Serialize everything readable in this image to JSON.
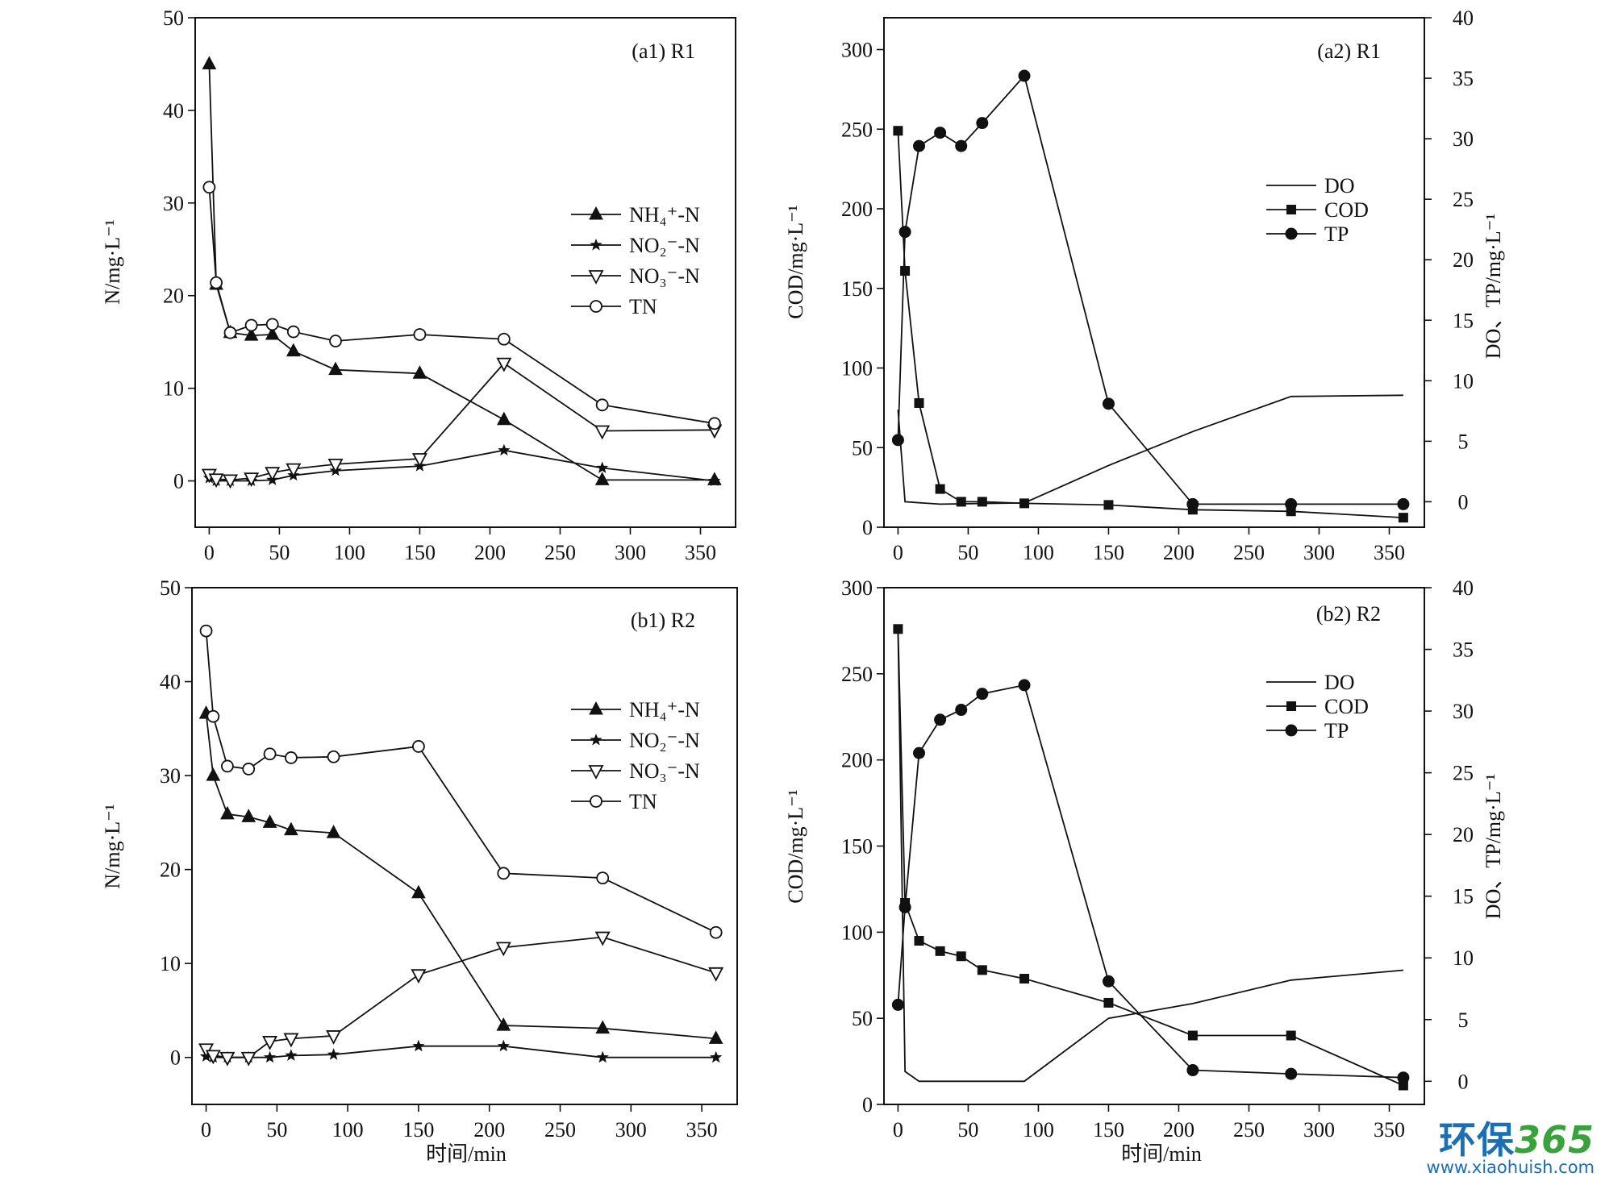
{
  "chart_data": [
    {
      "id": "a1",
      "type": "line",
      "title": "(a1) R1",
      "xlabel": "",
      "ylabel": "N/mg·L⁻¹",
      "xlim": [
        -10,
        375
      ],
      "ylim": [
        -5,
        50
      ],
      "xticks": [
        0,
        50,
        100,
        150,
        200,
        250,
        300,
        350
      ],
      "yticks": [
        0,
        10,
        20,
        30,
        40,
        50
      ],
      "legend_position": "right-middle",
      "series": [
        {
          "name": "NH₄⁺-N",
          "marker": "triangle-filled",
          "x": [
            0,
            5,
            15,
            30,
            45,
            60,
            90,
            150,
            210,
            280,
            360
          ],
          "y": [
            45.0,
            21.2,
            16.0,
            15.7,
            15.8,
            14.0,
            12.0,
            11.6,
            6.6,
            0.1,
            0.1
          ]
        },
        {
          "name": "NO₂⁻-N",
          "marker": "star",
          "x": [
            0,
            5,
            15,
            30,
            45,
            60,
            90,
            150,
            210,
            280,
            360
          ],
          "y": [
            0.3,
            0.0,
            0.0,
            0.0,
            0.1,
            0.6,
            1.1,
            1.6,
            3.3,
            1.4,
            0.0
          ]
        },
        {
          "name": "NO₃⁻-N",
          "marker": "triangle-down-open",
          "x": [
            0,
            5,
            15,
            30,
            45,
            60,
            90,
            150,
            210,
            280,
            360
          ],
          "y": [
            0.7,
            0.2,
            0.1,
            0.3,
            0.9,
            1.3,
            1.8,
            2.4,
            12.7,
            5.4,
            5.5
          ]
        },
        {
          "name": "TN",
          "marker": "circle-open",
          "x": [
            0,
            5,
            15,
            30,
            45,
            60,
            90,
            150,
            210,
            280,
            360
          ],
          "y": [
            31.7,
            21.4,
            16.0,
            16.8,
            16.9,
            16.1,
            15.1,
            15.8,
            15.3,
            8.2,
            6.2
          ]
        }
      ]
    },
    {
      "id": "a2",
      "type": "line",
      "title": "(a2) R1",
      "xlabel": "",
      "ylabel": "COD/mg·L⁻¹",
      "y2label": "DO、TP/mg·L⁻¹",
      "xlim": [
        -10,
        375
      ],
      "ylim": [
        0,
        320
      ],
      "y2lim": [
        -2.105,
        40.0
      ],
      "xticks": [
        0,
        50,
        100,
        150,
        200,
        250,
        300,
        350
      ],
      "yticks": [
        0,
        50,
        100,
        150,
        200,
        250,
        300
      ],
      "y2ticks": [
        0,
        5,
        10,
        15,
        20,
        25,
        30,
        35,
        40
      ],
      "legend_position": "right-upper",
      "series": [
        {
          "name": "DO",
          "marker": "none",
          "axis": "right",
          "x": [
            0,
            5,
            30,
            90,
            150,
            210,
            280,
            360
          ],
          "y": [
            7.6,
            0.0,
            -0.2,
            -0.1,
            3.0,
            5.8,
            8.7,
            8.8
          ]
        },
        {
          "name": "COD",
          "marker": "square-filled",
          "axis": "left",
          "x": [
            0,
            5,
            15,
            30,
            45,
            60,
            90,
            150,
            210,
            280,
            360
          ],
          "y": [
            249,
            161,
            78,
            24,
            16,
            16,
            15,
            14,
            11,
            10,
            6
          ]
        },
        {
          "name": "TP",
          "marker": "circle-filled",
          "axis": "right",
          "x": [
            0,
            5,
            15,
            30,
            45,
            60,
            90,
            150,
            210,
            280,
            360
          ],
          "y": [
            5.1,
            22.3,
            29.4,
            30.5,
            29.4,
            31.3,
            35.2,
            8.1,
            -0.2,
            -0.2,
            -0.2
          ]
        }
      ]
    },
    {
      "id": "b1",
      "type": "line",
      "title": "(b1) R2",
      "xlabel": "时间/min",
      "ylabel": "N/mg·L⁻¹",
      "xlim": [
        -10,
        375
      ],
      "ylim": [
        -5,
        50
      ],
      "xticks": [
        0,
        50,
        100,
        150,
        200,
        250,
        300,
        350
      ],
      "yticks": [
        0,
        10,
        20,
        30,
        40,
        50
      ],
      "legend_position": "right-middle",
      "series": [
        {
          "name": "NH₄⁺-N",
          "marker": "triangle-filled",
          "x": [
            0,
            5,
            15,
            30,
            45,
            60,
            90,
            150,
            210,
            280,
            360
          ],
          "y": [
            36.6,
            30.0,
            25.9,
            25.6,
            25.0,
            24.2,
            23.9,
            17.5,
            3.4,
            3.1,
            2.0
          ]
        },
        {
          "name": "NO₂⁻-N",
          "marker": "star",
          "x": [
            0,
            5,
            15,
            30,
            45,
            60,
            90,
            150,
            210,
            280,
            360
          ],
          "y": [
            0.1,
            0.0,
            0.0,
            0.0,
            0.0,
            0.2,
            0.3,
            1.2,
            1.2,
            0.0,
            0.0
          ]
        },
        {
          "name": "NO₃⁻-N",
          "marker": "triangle-down-open",
          "x": [
            0,
            5,
            15,
            30,
            45,
            60,
            90,
            150,
            210,
            280,
            360
          ],
          "y": [
            0.9,
            0.2,
            0.0,
            0.0,
            1.7,
            2.0,
            2.3,
            8.8,
            11.7,
            12.8,
            9.0
          ]
        },
        {
          "name": "TN",
          "marker": "circle-open",
          "x": [
            0,
            5,
            15,
            30,
            45,
            60,
            90,
            150,
            210,
            280,
            360
          ],
          "y": [
            45.4,
            36.3,
            31.0,
            30.7,
            32.3,
            31.9,
            32.0,
            33.1,
            19.6,
            19.1,
            13.3
          ]
        }
      ]
    },
    {
      "id": "b2",
      "type": "line",
      "title": "(b2) R2",
      "xlabel": "时间/min",
      "ylabel": "COD/mg·L⁻¹",
      "y2label": "DO、TP/mg·L⁻¹",
      "xlim": [
        -10,
        375
      ],
      "ylim": [
        0,
        300
      ],
      "y2lim": [
        -1.875,
        40.0
      ],
      "xticks": [
        0,
        50,
        100,
        150,
        200,
        250,
        300,
        350
      ],
      "yticks": [
        0,
        50,
        100,
        150,
        200,
        250,
        300
      ],
      "y2ticks": [
        0,
        5,
        10,
        15,
        20,
        25,
        30,
        35,
        40
      ],
      "legend_position": "right-upper",
      "series": [
        {
          "name": "DO",
          "marker": "none",
          "axis": "right",
          "x": [
            0,
            5,
            15,
            30,
            90,
            150,
            210,
            280,
            360
          ],
          "y": [
            36.6,
            0.8,
            0.0,
            0.0,
            0.0,
            5.1,
            6.3,
            8.2,
            9.0
          ]
        },
        {
          "name": "COD",
          "marker": "square-filled",
          "axis": "left",
          "x": [
            0,
            5,
            15,
            30,
            45,
            60,
            90,
            150,
            210,
            280,
            360
          ],
          "y": [
            276,
            117,
            95,
            89,
            86,
            78,
            73,
            59,
            40,
            40,
            11
          ]
        },
        {
          "name": "TP",
          "marker": "circle-filled",
          "axis": "right",
          "x": [
            0,
            5,
            15,
            30,
            45,
            60,
            90,
            150,
            210,
            280,
            360
          ],
          "y": [
            6.2,
            14.1,
            26.6,
            29.3,
            30.1,
            31.4,
            32.1,
            8.1,
            0.9,
            0.6,
            0.3
          ]
        }
      ]
    }
  ],
  "watermark": {
    "brand_text": "环保",
    "brand_number": "365",
    "url": "www.xiaohuish.com"
  }
}
